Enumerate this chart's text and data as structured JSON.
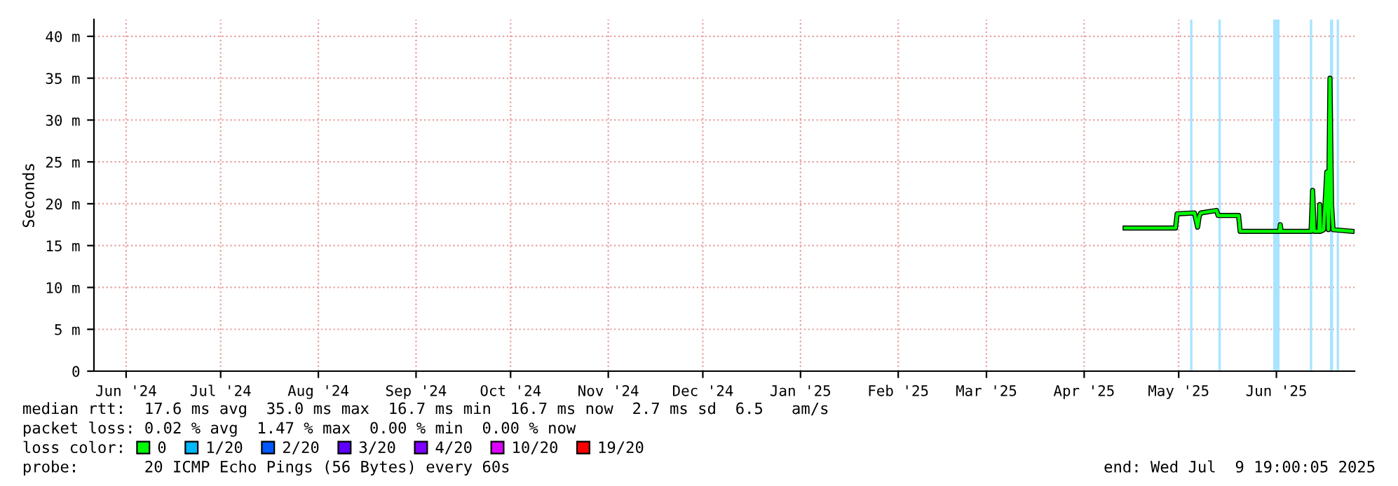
{
  "chart_data": {
    "type": "line",
    "ylabel": "Seconds",
    "legend_title": "loss color:",
    "xlim": [
      "2024-06-04T19:00",
      "2025-07-09T19:00"
    ],
    "xticks": [
      {
        "value": "2024-06-15",
        "label": "Jun '24"
      },
      {
        "value": "2024-07-15",
        "label": "Jul '24"
      },
      {
        "value": "2024-08-15",
        "label": "Aug '24"
      },
      {
        "value": "2024-09-15",
        "label": "Sep '24"
      },
      {
        "value": "2024-10-15",
        "label": "Oct '24"
      },
      {
        "value": "2024-11-15",
        "label": "Nov '24"
      },
      {
        "value": "2024-12-15",
        "label": "Dec '24"
      },
      {
        "value": "2025-01-15",
        "label": "Jan '25"
      },
      {
        "value": "2025-02-15",
        "label": "Feb '25"
      },
      {
        "value": "2025-03-15",
        "label": "Mar '25"
      },
      {
        "value": "2025-04-15",
        "label": "Apr '25"
      },
      {
        "value": "2025-05-15",
        "label": "May '25"
      },
      {
        "value": "2025-06-15",
        "label": "Jun '25"
      }
    ],
    "ylim": [
      0,
      42
    ],
    "yticks": [
      0,
      {
        "value": 5,
        "label": "5 m"
      },
      {
        "value": 10,
        "label": "10 m"
      },
      {
        "value": 15,
        "label": "15 m"
      },
      {
        "value": 20,
        "label": "20 m"
      },
      {
        "value": 25,
        "label": "25 m"
      },
      {
        "value": 30,
        "label": "30 m"
      },
      {
        "value": 35,
        "label": "35 m"
      },
      {
        "value": 40,
        "label": "40 m"
      }
    ],
    "grid": true,
    "legend": "bottom",
    "marker": "none",
    "line_style": "solid",
    "x": [
      "2025-04-28",
      "2025-05-06",
      "2025-05-14",
      "2025-05-14T12:00",
      "2025-05-20",
      "2025-05-21",
      "2025-05-21T12:00",
      "2025-05-22",
      "2025-05-27",
      "2025-05-27T12:00",
      "2025-06-03",
      "2025-06-03T12:00",
      "2025-06-16",
      "2025-06-16T06:00",
      "2025-06-16T12:00",
      "2025-06-26",
      "2025-06-26T12:00",
      "2025-06-27",
      "2025-06-28T12:00",
      "2025-06-28T18:00",
      "2025-06-29",
      "2025-06-30",
      "2025-07-01",
      "2025-07-01T12:00",
      "2025-07-02",
      "2025-07-02T12:00",
      "2025-07-03",
      "2025-07-09"
    ],
    "series": [
      {
        "name": "0",
        "color": "#00ff00",
        "values": [
          17.1,
          17.1,
          17.1,
          18.8,
          18.9,
          17.2,
          18.5,
          18.9,
          19.2,
          18.6,
          18.6,
          16.7,
          16.7,
          17.5,
          16.7,
          16.7,
          21.6,
          16.7,
          16.7,
          19.9,
          16.7,
          16.9,
          23.8,
          16.9,
          35.0,
          19.9,
          16.9,
          16.7
        ]
      },
      {
        "name": "1/20",
        "color": "#00b8ff",
        "values": [
          null,
          null,
          null,
          null,
          null,
          null,
          null,
          null,
          null,
          null,
          null,
          null,
          null,
          null,
          null,
          null,
          null,
          null,
          null,
          null,
          null,
          null,
          null,
          null,
          null,
          null,
          null,
          null
        ]
      },
      {
        "name": "2/20",
        "color": "#0059ff",
        "values": [
          null,
          null,
          null,
          null,
          null,
          null,
          null,
          null,
          null,
          null,
          null,
          null,
          null,
          null,
          null,
          null,
          null,
          null,
          null,
          null,
          null,
          null,
          null,
          null,
          null,
          null,
          null,
          null
        ]
      },
      {
        "name": "3/20",
        "color": "#5e00ff",
        "values": [
          null,
          null,
          null,
          null,
          null,
          null,
          null,
          null,
          null,
          null,
          null,
          null,
          null,
          null,
          null,
          null,
          null,
          null,
          null,
          null,
          null,
          null,
          null,
          null,
          null,
          null,
          null,
          null
        ]
      },
      {
        "name": "4/20",
        "color": "#7e00ff",
        "values": [
          null,
          null,
          null,
          null,
          null,
          null,
          null,
          null,
          null,
          null,
          null,
          null,
          null,
          null,
          null,
          null,
          null,
          null,
          null,
          null,
          null,
          null,
          null,
          null,
          null,
          null,
          null,
          null
        ]
      },
      {
        "name": "10/20",
        "color": "#dd00ff",
        "values": [
          null,
          null,
          null,
          null,
          null,
          null,
          null,
          null,
          null,
          null,
          null,
          null,
          null,
          null,
          null,
          null,
          null,
          null,
          null,
          null,
          null,
          null,
          null,
          null,
          null,
          null,
          null,
          null
        ]
      },
      {
        "name": "19/20",
        "color": "#ff0000",
        "values": [
          null,
          null,
          null,
          null,
          null,
          null,
          null,
          null,
          null,
          null,
          null,
          null,
          null,
          null,
          null,
          null,
          null,
          null,
          null,
          null,
          null,
          null,
          null,
          null,
          null,
          null,
          null,
          null
        ]
      }
    ],
    "ref_lines": [
      {
        "axis": "x",
        "value": "2025-05-19",
        "color": "#a8e4ff"
      },
      {
        "axis": "x",
        "value": "2025-05-28",
        "color": "#a8e4ff"
      },
      {
        "axis": "x",
        "value": "2025-06-26",
        "color": "#a8e4ff"
      },
      {
        "axis": "x",
        "value": "2025-07-04T12:00",
        "color": "#a8e4ff"
      }
    ],
    "bands": [
      {
        "axis": "x",
        "from": "2025-06-14",
        "to": "2025-06-16",
        "color": "#a8e4ff"
      },
      {
        "axis": "x",
        "from": "2025-07-02",
        "to": "2025-07-03",
        "color": "#a8e4ff"
      }
    ],
    "annotations": [
      "median rtt:  17.6 ms avg  35.0 ms max  16.7 ms min  16.7 ms now  2.7 ms sd  6.5   am/s",
      "packet loss: 0.02 % avg  1.47 % max  0.00 % min  0.00 % now",
      "probe:       20 ICMP Echo Pings (56 Bytes) every 60s",
      "end: Wed Jul  9 19:00:05 2025"
    ]
  }
}
